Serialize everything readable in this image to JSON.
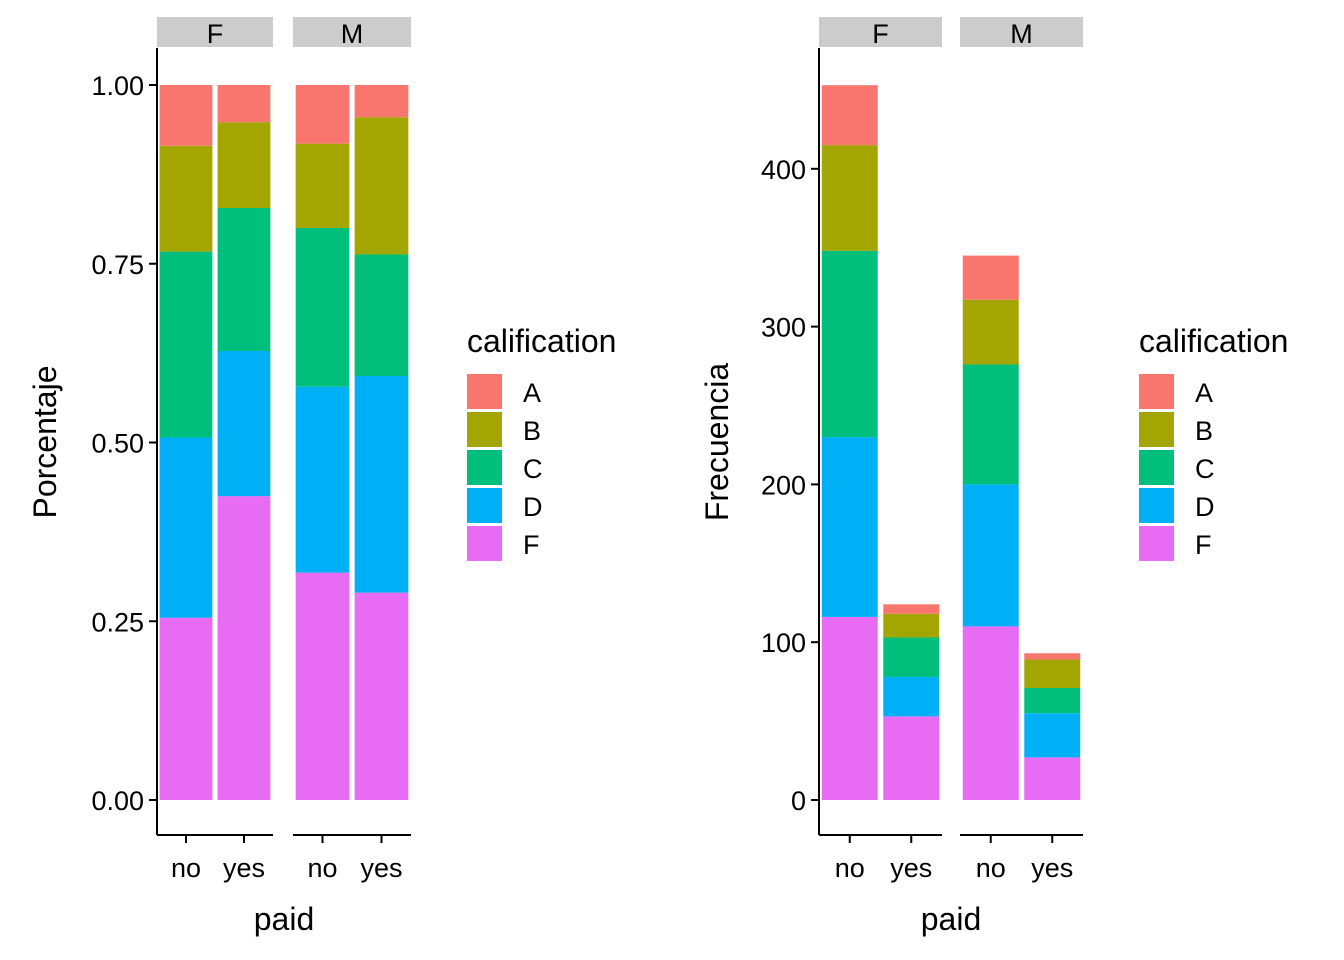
{
  "chart_data": [
    {
      "type": "bar",
      "stacked": true,
      "facet": "sex",
      "panels": [
        "F",
        "M"
      ],
      "categories": [
        "no",
        "yes"
      ],
      "xlabel": "paid",
      "ylabel": "Porcentaje",
      "ylim": [
        0,
        1
      ],
      "yticks": [
        "0.00",
        "0.25",
        "0.50",
        "0.75",
        "1.00"
      ],
      "ytick_values": [
        0,
        0.25,
        0.5,
        0.75,
        1.0
      ],
      "grid": false,
      "legend_title": "calification",
      "legend_position": "right",
      "series": [
        {
          "name": "F",
          "color": "#E76BF3",
          "values": {
            "F": [
              0.255,
              0.425
            ],
            "M": [
              0.318,
              0.29
            ]
          }
        },
        {
          "name": "D",
          "color": "#00B0F6",
          "values": {
            "F": [
              0.252,
              0.203
            ],
            "M": [
              0.26,
              0.303
            ]
          }
        },
        {
          "name": "C",
          "color": "#00BF7D",
          "values": {
            "F": [
              0.26,
              0.2
            ],
            "M": [
              0.222,
              0.17
            ]
          }
        },
        {
          "name": "B",
          "color": "#A3A500",
          "values": {
            "F": [
              0.148,
              0.12
            ],
            "M": [
              0.118,
              0.192
            ]
          }
        },
        {
          "name": "A",
          "color": "#F8766D",
          "values": {
            "F": [
              0.085,
              0.052
            ],
            "M": [
              0.082,
              0.045
            ]
          }
        }
      ]
    },
    {
      "type": "bar",
      "stacked": true,
      "facet": "sex",
      "panels": [
        "F",
        "M"
      ],
      "categories": [
        "no",
        "yes"
      ],
      "xlabel": "paid",
      "ylabel": "Frecuencia",
      "ylim": [
        0,
        476
      ],
      "yticks": [
        "0",
        "100",
        "200",
        "300",
        "400"
      ],
      "ytick_values": [
        0,
        100,
        200,
        300,
        400
      ],
      "grid": false,
      "legend_title": "calification",
      "legend_position": "right",
      "series": [
        {
          "name": "F",
          "color": "#E76BF3",
          "values": {
            "F": [
              116,
              53
            ],
            "M": [
              110,
              27
            ]
          }
        },
        {
          "name": "D",
          "color": "#00B0F6",
          "values": {
            "F": [
              114,
              25
            ],
            "M": [
              90,
              28
            ]
          }
        },
        {
          "name": "C",
          "color": "#00BF7D",
          "values": {
            "F": [
              118,
              25
            ],
            "M": [
              76,
              16
            ]
          }
        },
        {
          "name": "B",
          "color": "#A3A500",
          "values": {
            "F": [
              67,
              15
            ],
            "M": [
              41,
              18
            ]
          }
        },
        {
          "name": "A",
          "color": "#F8766D",
          "values": {
            "F": [
              38,
              6
            ],
            "M": [
              28,
              4
            ]
          }
        }
      ]
    }
  ],
  "legend": {
    "title": "calification",
    "items": [
      {
        "label": "A",
        "color": "#F8766D"
      },
      {
        "label": "B",
        "color": "#A3A500"
      },
      {
        "label": "C",
        "color": "#00BF7D"
      },
      {
        "label": "D",
        "color": "#00B0F6"
      },
      {
        "label": "F",
        "color": "#E76BF3"
      }
    ]
  },
  "strip_color": "#CCCCCC"
}
